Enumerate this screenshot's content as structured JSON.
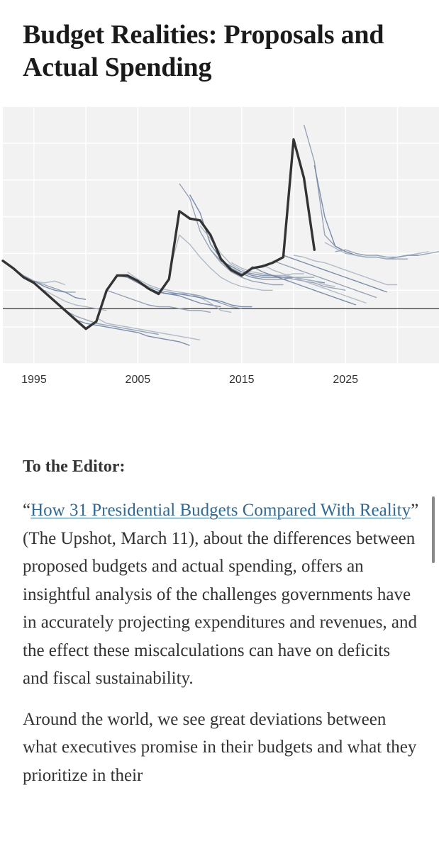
{
  "article": {
    "headline": "Budget Realities: Proposals and Actual Spending"
  },
  "chart_data": {
    "type": "line",
    "title": "",
    "xlabel": "",
    "ylabel": "",
    "x_tick_labels": [
      "1995",
      "2005",
      "2015",
      "2025"
    ],
    "x_ticks": [
      1995,
      2005,
      2015,
      2025
    ],
    "xlim": [
      1992,
      2034
    ],
    "ylim": [
      -3,
      11
    ],
    "grid": true,
    "grid_color": "#e6e6e6",
    "plot_background": "#f2f2f2",
    "zero_line": 0,
    "zero_line_color": "#333333",
    "actual_color": "#333333",
    "proposal_colors": [
      "#aab4c2",
      "#8d9bb0",
      "#6d82a3"
    ],
    "series": [
      {
        "role": "actual",
        "x": [
          1992,
          1993,
          1994,
          1995,
          1996,
          1997,
          1998,
          1999,
          2000,
          2001,
          2002,
          2003,
          2004,
          2005,
          2006,
          2007,
          2008,
          2009,
          2010,
          2011,
          2012,
          2013,
          2014,
          2015,
          2016,
          2017,
          2018,
          2019,
          2020,
          2021,
          2022
        ],
        "y": [
          2.6,
          2.2,
          1.7,
          1.4,
          0.9,
          0.4,
          -0.1,
          -0.6,
          -1.1,
          -0.7,
          1.0,
          1.8,
          1.8,
          1.5,
          1.1,
          0.8,
          1.6,
          5.3,
          4.9,
          4.8,
          4.0,
          2.7,
          2.1,
          1.8,
          2.2,
          2.3,
          2.5,
          2.8,
          9.2,
          7.1,
          3.2
        ]
      },
      {
        "role": "proposal",
        "x": [
          1993,
          1994,
          1995,
          1996,
          1997,
          1998
        ],
        "y": [
          2.2,
          1.8,
          1.5,
          1.4,
          1.5,
          1.3
        ]
      },
      {
        "role": "proposal",
        "x": [
          1994,
          1995,
          1996,
          1997,
          1998,
          1999
        ],
        "y": [
          1.8,
          1.5,
          1.3,
          1.1,
          0.9,
          0.9
        ]
      },
      {
        "role": "proposal",
        "x": [
          1995,
          1996,
          1997,
          1998,
          1999,
          2000
        ],
        "y": [
          1.5,
          1.2,
          1.0,
          0.9,
          0.6,
          0.5
        ]
      },
      {
        "role": "proposal",
        "x": [
          1996,
          1997,
          1998,
          1999,
          2000,
          2001,
          2002
        ],
        "y": [
          1.0,
          0.7,
          0.4,
          0.2,
          0.1,
          0.0,
          -0.1
        ]
      },
      {
        "role": "proposal",
        "x": [
          1998,
          1999,
          2000,
          2001,
          2002,
          2003,
          2004,
          2005,
          2006,
          2007
        ],
        "y": [
          -0.1,
          -0.4,
          -0.6,
          -0.8,
          -0.9,
          -1.0,
          -1.1,
          -1.2,
          -1.3,
          -1.4
        ]
      },
      {
        "role": "proposal",
        "x": [
          1999,
          2000,
          2001,
          2002,
          2003,
          2004,
          2005,
          2006,
          2007,
          2008,
          2009,
          2010
        ],
        "y": [
          -0.6,
          -0.8,
          -0.9,
          -1.0,
          -1.1,
          -1.2,
          -1.3,
          -1.5,
          -1.6,
          -1.7,
          -1.8,
          -2.0
        ]
      },
      {
        "role": "proposal",
        "x": [
          2001,
          2002,
          2003,
          2004,
          2005,
          2006,
          2007,
          2008,
          2009,
          2010,
          2011
        ],
        "y": [
          -0.5,
          -0.8,
          -0.9,
          -1.0,
          -1.1,
          -1.2,
          -1.3,
          -1.4,
          -1.5,
          -1.6,
          -1.7
        ]
      },
      {
        "role": "proposal",
        "x": [
          2002,
          2003,
          2004,
          2005,
          2006,
          2007,
          2008,
          2009,
          2010,
          2011,
          2012
        ],
        "y": [
          1.0,
          0.8,
          0.6,
          0.4,
          0.2,
          0.1,
          0.1,
          0.0,
          -0.1,
          -0.1,
          -0.2
        ]
      },
      {
        "role": "proposal",
        "x": [
          2003,
          2004,
          2005,
          2006,
          2007,
          2008,
          2009,
          2010,
          2011,
          2012,
          2013
        ],
        "y": [
          1.8,
          1.7,
          1.4,
          1.1,
          0.9,
          0.8,
          0.7,
          0.5,
          0.3,
          0.2,
          0.1
        ]
      },
      {
        "role": "proposal",
        "x": [
          2004,
          2005,
          2006,
          2007,
          2008,
          2009,
          2010,
          2011,
          2012,
          2013,
          2014
        ],
        "y": [
          2.0,
          1.6,
          1.3,
          1.1,
          1.0,
          0.9,
          0.8,
          0.6,
          0.3,
          -0.1,
          -0.2
        ]
      },
      {
        "role": "proposal",
        "x": [
          2005,
          2006,
          2007,
          2008,
          2009,
          2010,
          2011,
          2012,
          2013,
          2014,
          2015
        ],
        "y": [
          1.5,
          1.2,
          1.0,
          0.9,
          0.8,
          0.8,
          0.7,
          0.5,
          0.3,
          0.1,
          0.0
        ]
      },
      {
        "role": "proposal",
        "x": [
          2006,
          2007,
          2008,
          2009,
          2010,
          2011,
          2012,
          2013,
          2014,
          2015,
          2016
        ],
        "y": [
          1.1,
          0.9,
          0.8,
          0.8,
          0.7,
          0.6,
          0.5,
          0.4,
          0.2,
          0.1,
          0.1
        ]
      },
      {
        "role": "proposal",
        "x": [
          2008,
          2009,
          2010,
          2011,
          2012,
          2013,
          2014,
          2015,
          2016,
          2017,
          2018
        ],
        "y": [
          2.0,
          4.0,
          3.5,
          2.8,
          2.2,
          1.7,
          1.4,
          1.2,
          1.1,
          1.0,
          1.0
        ]
      },
      {
        "role": "proposal",
        "x": [
          2009,
          2010,
          2011,
          2012,
          2013,
          2014,
          2015,
          2016,
          2017,
          2018,
          2019
        ],
        "y": [
          6.8,
          6.0,
          4.2,
          3.2,
          2.5,
          2.0,
          1.7,
          1.5,
          1.4,
          1.3,
          1.3
        ]
      },
      {
        "role": "proposal",
        "x": [
          2010,
          2011,
          2012,
          2013,
          2014,
          2015,
          2016,
          2017,
          2018,
          2019,
          2020
        ],
        "y": [
          6.2,
          5.2,
          3.5,
          2.7,
          2.2,
          1.9,
          1.7,
          1.6,
          1.6,
          1.6,
          1.7
        ]
      },
      {
        "role": "proposal",
        "x": [
          2011,
          2012,
          2013,
          2014,
          2015,
          2016,
          2017,
          2018,
          2019,
          2020,
          2021
        ],
        "y": [
          4.5,
          3.8,
          3.0,
          2.4,
          2.1,
          1.9,
          1.8,
          1.8,
          1.8,
          1.9,
          1.9
        ]
      },
      {
        "role": "proposal",
        "x": [
          2012,
          2013,
          2014,
          2015,
          2016,
          2017,
          2018,
          2019,
          2020,
          2021,
          2022
        ],
        "y": [
          3.2,
          2.6,
          2.2,
          1.9,
          1.7,
          1.6,
          1.6,
          1.6,
          1.7,
          1.7,
          1.7
        ]
      },
      {
        "role": "proposal",
        "x": [
          2013,
          2014,
          2015,
          2016,
          2017,
          2018,
          2019,
          2020,
          2021,
          2022,
          2023
        ],
        "y": [
          2.6,
          2.3,
          2.0,
          1.8,
          1.7,
          1.7,
          1.7,
          1.7,
          1.6,
          1.5,
          1.4
        ]
      },
      {
        "role": "proposal",
        "x": [
          2014,
          2015,
          2016,
          2017,
          2018,
          2019,
          2020,
          2021,
          2022,
          2023,
          2024
        ],
        "y": [
          2.5,
          2.2,
          2.0,
          1.9,
          1.8,
          1.8,
          1.7,
          1.6,
          1.5,
          1.3,
          1.2
        ]
      },
      {
        "role": "proposal",
        "x": [
          2015,
          2016,
          2017,
          2018,
          2019,
          2020,
          2021,
          2022,
          2023,
          2024,
          2025
        ],
        "y": [
          2.0,
          1.9,
          1.8,
          1.8,
          1.7,
          1.6,
          1.5,
          1.4,
          1.2,
          1.1,
          1.0
        ]
      },
      {
        "role": "proposal",
        "x": [
          2016,
          2017,
          2018,
          2019,
          2020,
          2021,
          2022,
          2023,
          2024,
          2025,
          2026
        ],
        "y": [
          2.3,
          2.0,
          1.8,
          1.6,
          1.4,
          1.2,
          1.0,
          0.8,
          0.6,
          0.4,
          0.2
        ]
      },
      {
        "role": "proposal",
        "x": [
          2017,
          2018,
          2019,
          2020,
          2021,
          2022,
          2023,
          2024,
          2025,
          2026,
          2027
        ],
        "y": [
          2.4,
          2.1,
          1.9,
          1.7,
          1.5,
          1.3,
          1.1,
          0.9,
          0.7,
          0.5,
          0.3
        ]
      },
      {
        "role": "proposal",
        "x": [
          2018,
          2019,
          2020,
          2021,
          2022,
          2023,
          2024,
          2025,
          2026,
          2027,
          2028
        ],
        "y": [
          2.6,
          2.4,
          2.2,
          2.0,
          1.8,
          1.6,
          1.4,
          1.2,
          1.0,
          0.8,
          0.6
        ]
      },
      {
        "role": "proposal",
        "x": [
          2019,
          2020,
          2021,
          2022,
          2023,
          2024,
          2025,
          2026,
          2027,
          2028,
          2029
        ],
        "y": [
          2.9,
          2.7,
          2.5,
          2.3,
          2.1,
          1.9,
          1.7,
          1.5,
          1.3,
          1.1,
          0.9
        ]
      },
      {
        "role": "proposal",
        "x": [
          2020,
          2021,
          2022,
          2023,
          2024,
          2025,
          2026,
          2027,
          2028,
          2029,
          2030
        ],
        "y": [
          2.9,
          2.8,
          2.6,
          2.5,
          2.3,
          2.1,
          1.9,
          1.7,
          1.5,
          1.3,
          1.3
        ]
      },
      {
        "role": "proposal",
        "x": [
          2021,
          2022,
          2023,
          2024,
          2025,
          2026,
          2027,
          2028,
          2029,
          2030,
          2031
        ],
        "y": [
          10.0,
          8.0,
          4.0,
          3.4,
          3.1,
          2.9,
          2.8,
          2.8,
          2.7,
          2.7,
          2.7
        ]
      },
      {
        "role": "proposal",
        "x": [
          2022,
          2023,
          2024,
          2025,
          2026,
          2027,
          2028,
          2029,
          2030,
          2031,
          2032
        ],
        "y": [
          7.8,
          5.0,
          3.4,
          3.1,
          2.9,
          2.8,
          2.8,
          2.7,
          2.8,
          2.9,
          2.9
        ]
      },
      {
        "role": "proposal",
        "x": [
          2023,
          2024,
          2025,
          2026,
          2027,
          2028,
          2029,
          2030,
          2031,
          2032,
          2033
        ],
        "y": [
          3.6,
          3.3,
          3.0,
          2.9,
          2.8,
          2.8,
          2.7,
          2.8,
          2.9,
          3.0,
          3.1
        ]
      },
      {
        "role": "proposal",
        "x": [
          2024,
          2025,
          2026,
          2027,
          2028,
          2029,
          2030,
          2031,
          2032,
          2033,
          2034
        ],
        "y": [
          3.1,
          3.2,
          3.0,
          2.9,
          2.9,
          2.8,
          2.8,
          2.9,
          2.9,
          3.0,
          3.1
        ]
      }
    ]
  },
  "letter": {
    "salutation": "To the Editor:",
    "p1_open_quote": "“",
    "p1_link_text": "How 31 Presidential Budgets Compared With Reality",
    "p1_after_link": "” (The Upshot, March 11), about the differences between proposed budgets and actual spending, offers an insightful analysis of the challenges governments have in accurately projecting expenditures and revenues, and the effect these miscalculations can have on deficits and fiscal sustainability.",
    "p2": "Around the world, we see great deviations between what executives promise in their budgets and what they prioritize in their"
  },
  "colors": {
    "link": "#326891",
    "body_text": "#333333",
    "headline": "#1a1a1a"
  }
}
